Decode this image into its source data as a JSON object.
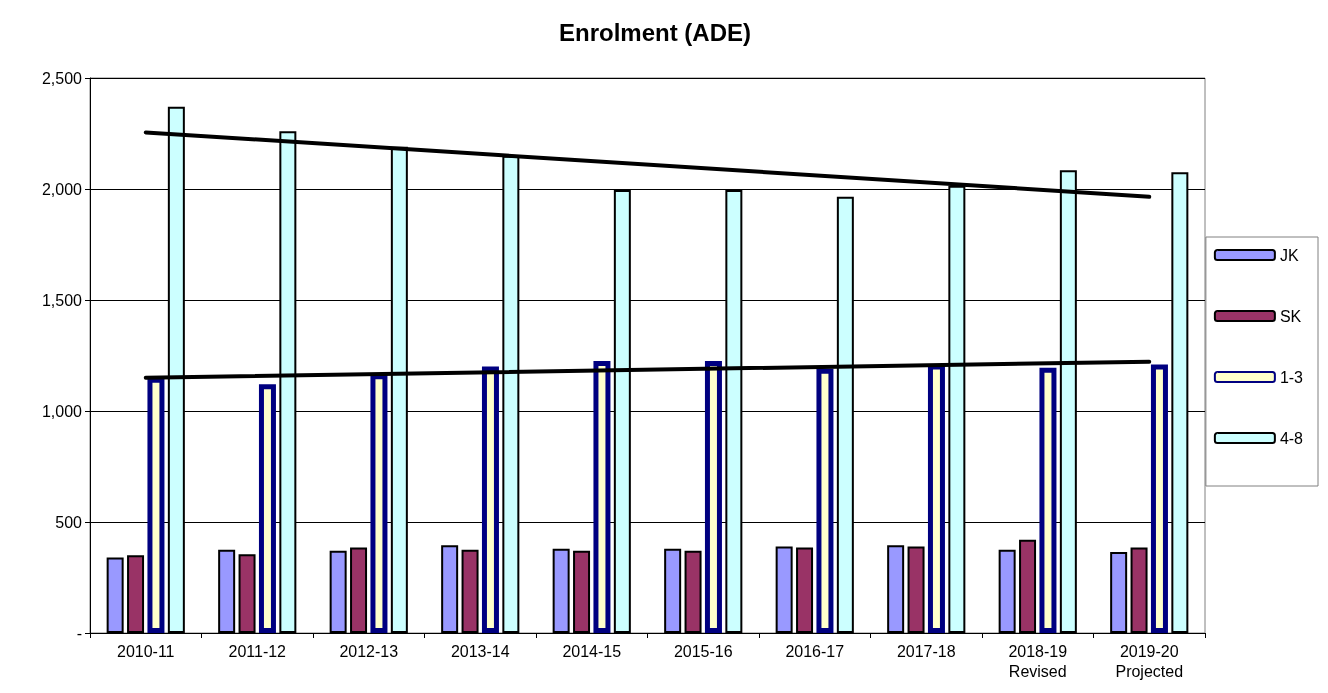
{
  "chart_data": {
    "type": "bar",
    "title": "Enrolment (ADE)",
    "categories": [
      "2010-11",
      "2011-12",
      "2012-13",
      "2013-14",
      "2014-15",
      "2015-16",
      "2016-17",
      "2017-18",
      "2018-19\nRevised",
      "2019-20\nProjected"
    ],
    "series": [
      {
        "name": "JK",
        "color": "#9999ff",
        "values": [
          340,
          375,
          370,
          395,
          380,
          380,
          390,
          395,
          375,
          365
        ]
      },
      {
        "name": "SK",
        "color": "#993366",
        "values": [
          350,
          355,
          385,
          375,
          370,
          370,
          385,
          390,
          420,
          385
        ]
      },
      {
        "name": "1-3",
        "color": "#ffffcc",
        "values": [
          1150,
          1120,
          1165,
          1200,
          1225,
          1225,
          1190,
          1210,
          1195,
          1210
        ]
      },
      {
        "name": "4-8",
        "color": "#ccffff",
        "values": [
          2370,
          2260,
          2190,
          2150,
          1995,
          1995,
          1965,
          2015,
          2085,
          2075
        ]
      },
      {
        "type": "line",
        "color": "#000000",
        "marker": "none",
        "values": [
          2255,
          null,
          null,
          null,
          null,
          null,
          null,
          null,
          null,
          1965
        ]
      },
      {
        "type": "line",
        "color": "#000000",
        "marker": "none",
        "values": [
          1150,
          null,
          null,
          null,
          null,
          null,
          null,
          null,
          null,
          1222
        ]
      }
    ],
    "ylim": [
      0,
      2500
    ],
    "yticks": [
      {
        "value": 0,
        "label": "-"
      },
      500,
      {
        "value": 1000,
        "label": "1,000"
      },
      {
        "value": 1500,
        "label": "1,500"
      },
      {
        "value": 2000,
        "label": "2,000"
      },
      {
        "value": 2500,
        "label": "2,500"
      }
    ],
    "grid": "y",
    "legend": "right"
  }
}
